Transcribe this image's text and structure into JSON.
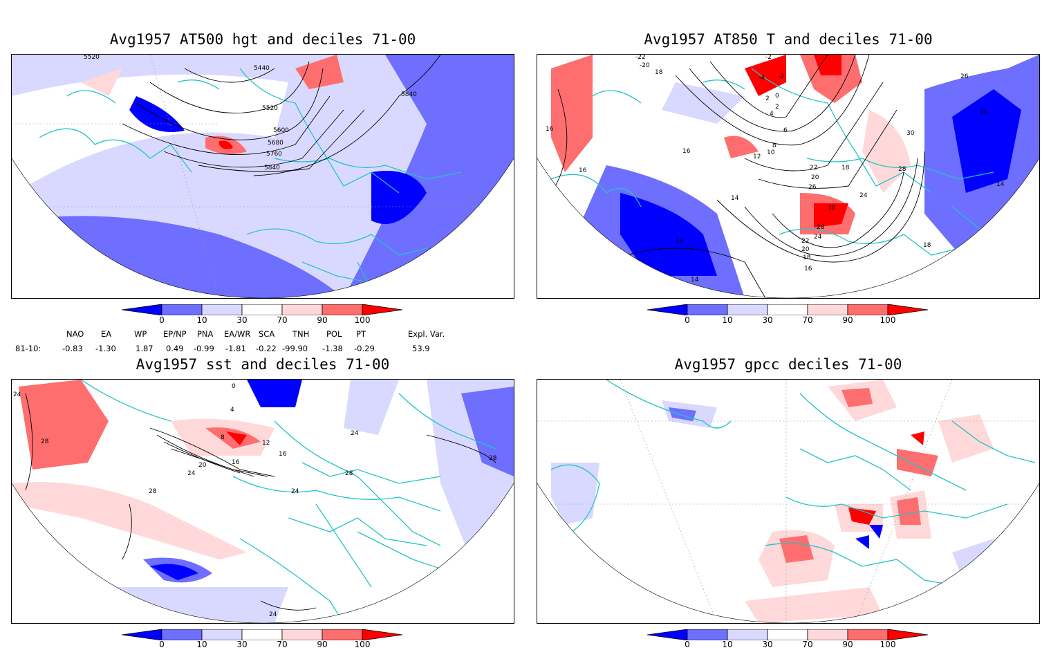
{
  "panels": [
    {
      "title": "Avg1957 AT500 hgt and deciles 71-00",
      "contour_labels": [
        "5520",
        "5440",
        "5840",
        "5520",
        "5600",
        "5680",
        "5760",
        "5840"
      ]
    },
    {
      "title": "Avg1957 AT850 T and deciles 71-00",
      "contour_labels": [
        "-22",
        "-20",
        "18",
        "-2",
        "-2",
        "-4",
        "26",
        "2",
        "0",
        "2",
        "4",
        "16",
        "6",
        "8",
        "16",
        "10",
        "12",
        "30",
        "16",
        "18",
        "22",
        "28",
        "20",
        "14",
        "24",
        "26",
        "14",
        "30",
        "28",
        "16",
        "24",
        "22",
        "20",
        "18",
        "16",
        "18",
        "14",
        "14"
      ]
    },
    {
      "title": "Avg1957 sst and deciles 71-00",
      "contour_labels": [
        "24",
        "0",
        "28",
        "4",
        "8",
        "12",
        "16",
        "16",
        "20",
        "24",
        "24",
        "28",
        "28",
        "24",
        "28",
        "24"
      ]
    },
    {
      "title": "Avg1957 gpcc deciles 71-00",
      "contour_labels": []
    }
  ],
  "colorbar": {
    "tick_labels": [
      "0",
      "10",
      "30",
      "70",
      "90",
      "100"
    ],
    "colors": [
      "#0000ff",
      "#6e6eff",
      "#d9d9ff",
      "#ffffff",
      "#ffd9d9",
      "#ff6e6e",
      "#ff0000"
    ]
  },
  "indices": {
    "headers": [
      "NAO",
      "EA",
      "WP",
      "EP/NP",
      "PNA",
      "EA/WR",
      "SCA",
      "TNH",
      "POL",
      "PT",
      "Expl. Var."
    ],
    "row_label": "81-10:",
    "values": [
      "-0.83",
      "-1.30",
      "1.87",
      "0.49",
      "-0.99",
      "-1.81",
      "-0.22",
      "-99.90",
      "-1.38",
      "-0.29",
      "53.9"
    ]
  },
  "map_colors": {
    "coast": "#22c4c4",
    "contour": "#000000"
  }
}
